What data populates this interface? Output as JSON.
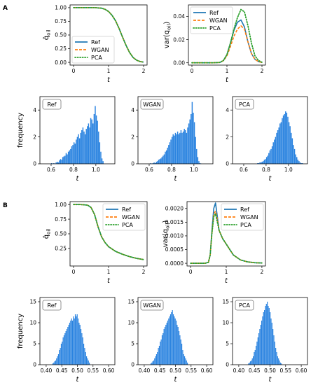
{
  "colors": {
    "ref": "#1f77b4",
    "wgan": "#ff7f0e",
    "pca": "#2ca02c",
    "hist": "#2a83e0"
  },
  "panels": [
    {
      "label": "A"
    },
    {
      "label": "B"
    }
  ],
  "chart_data": [
    {
      "id": "A-mean",
      "type": "line",
      "xlabel": "t",
      "ylabel": "q̂_oil",
      "ylabel_text": "q̂",
      "ylabel_sub": "oil",
      "xlim": [
        -0.1,
        2.1
      ],
      "ylim": [
        -0.05,
        1.05
      ],
      "xticks": [
        0,
        1,
        2
      ],
      "xtick_labels": [
        "0",
        "1",
        "2"
      ],
      "yticks": [
        0,
        0.25,
        0.5,
        0.75,
        1.0
      ],
      "ytick_labels": [
        "0.00",
        "0.25",
        "0.50",
        "0.75",
        "1.00"
      ],
      "legend": {
        "position": "lower-left",
        "entries": [
          "Ref",
          "WGAN",
          "PCA"
        ]
      },
      "series": [
        {
          "name": "Ref",
          "style": "solid",
          "x": [
            0,
            0.2,
            0.4,
            0.6,
            0.8,
            0.9,
            1.0,
            1.1,
            1.2,
            1.3,
            1.4,
            1.5,
            1.6,
            1.7,
            1.8,
            1.9,
            2.0
          ],
          "values": [
            1.0,
            1.0,
            1.0,
            1.0,
            0.99,
            0.97,
            0.93,
            0.86,
            0.76,
            0.62,
            0.46,
            0.31,
            0.18,
            0.09,
            0.04,
            0.015,
            0.005
          ]
        },
        {
          "name": "WGAN",
          "style": "dashed",
          "x": [
            0,
            0.2,
            0.4,
            0.6,
            0.8,
            0.9,
            1.0,
            1.1,
            1.2,
            1.3,
            1.4,
            1.5,
            1.6,
            1.7,
            1.8,
            1.9,
            2.0
          ],
          "values": [
            1.0,
            1.0,
            1.0,
            1.0,
            0.99,
            0.97,
            0.93,
            0.86,
            0.76,
            0.62,
            0.46,
            0.31,
            0.18,
            0.09,
            0.04,
            0.015,
            0.005
          ]
        },
        {
          "name": "PCA",
          "style": "dotted",
          "x": [
            0,
            0.2,
            0.4,
            0.6,
            0.8,
            0.9,
            1.0,
            1.1,
            1.2,
            1.3,
            1.4,
            1.5,
            1.6,
            1.7,
            1.8,
            1.9,
            2.0
          ],
          "values": [
            1.0,
            1.0,
            1.0,
            1.0,
            0.99,
            0.97,
            0.93,
            0.86,
            0.76,
            0.62,
            0.46,
            0.31,
            0.18,
            0.09,
            0.04,
            0.015,
            0.005
          ]
        }
      ]
    },
    {
      "id": "A-var",
      "type": "line",
      "xlabel": "t",
      "ylabel": "var(q_oil)",
      "ylabel_text": "var(q",
      "ylabel_sub": "oil",
      "ylabel_close": ")",
      "xlim": [
        -0.1,
        2.1
      ],
      "ylim": [
        -0.002,
        0.05
      ],
      "xticks": [
        0,
        1,
        2
      ],
      "xtick_labels": [
        "0",
        "1",
        "2"
      ],
      "yticks": [
        0,
        0.02,
        0.04
      ],
      "ytick_labels": [
        "0.00",
        "0.02",
        "0.04"
      ],
      "legend": {
        "position": "upper-left",
        "entries": [
          "Ref",
          "WGAN",
          "PCA"
        ]
      },
      "series": [
        {
          "name": "Ref",
          "style": "solid",
          "x": [
            0,
            0.6,
            0.8,
            0.9,
            1.0,
            1.1,
            1.2,
            1.3,
            1.4,
            1.5,
            1.6,
            1.7,
            1.8,
            1.9,
            2.0
          ],
          "values": [
            0,
            0,
            0.0003,
            0.002,
            0.007,
            0.017,
            0.028,
            0.035,
            0.037,
            0.031,
            0.018,
            0.008,
            0.003,
            0.001,
            0.0003
          ]
        },
        {
          "name": "WGAN",
          "style": "dashed",
          "x": [
            0,
            0.6,
            0.8,
            0.9,
            1.0,
            1.1,
            1.2,
            1.3,
            1.4,
            1.5,
            1.6,
            1.7,
            1.8,
            1.9,
            2.0
          ],
          "values": [
            0,
            0,
            0.0003,
            0.0018,
            0.006,
            0.014,
            0.023,
            0.029,
            0.032,
            0.029,
            0.018,
            0.008,
            0.003,
            0.001,
            0.0003
          ]
        },
        {
          "name": "PCA",
          "style": "dotted",
          "x": [
            0,
            0.6,
            0.8,
            0.9,
            1.0,
            1.1,
            1.2,
            1.3,
            1.4,
            1.5,
            1.6,
            1.7,
            1.8,
            1.9,
            2.0
          ],
          "values": [
            0,
            0,
            0.0003,
            0.002,
            0.007,
            0.017,
            0.029,
            0.039,
            0.046,
            0.044,
            0.032,
            0.017,
            0.006,
            0.002,
            0.0005
          ]
        }
      ]
    },
    {
      "id": "A-hist-ref",
      "type": "bar",
      "label": "Ref",
      "xlabel": "t",
      "ylabel": "frequency",
      "xlim": [
        0.5,
        1.17
      ],
      "ylim": [
        0,
        5.0
      ],
      "xticks": [
        0.6,
        0.8,
        1.0
      ],
      "xtick_labels": [
        "0.6",
        "0.8",
        "1.0"
      ],
      "yticks": [
        0,
        2,
        4
      ],
      "ytick_labels": [
        "0",
        "2",
        "4"
      ],
      "bin_start": 0.6,
      "bin_width": 0.01,
      "values": [
        0.05,
        0,
        0.05,
        0,
        0.1,
        0.15,
        0.1,
        0.25,
        0.35,
        0.3,
        0.5,
        0.55,
        0.6,
        0.8,
        0.7,
        0.9,
        1.0,
        1.1,
        1.3,
        1.4,
        1.6,
        1.5,
        1.8,
        2.0,
        2.2,
        1.9,
        2.3,
        2.5,
        2.7,
        2.4,
        2.2,
        2.6,
        2.8,
        3.0,
        2.7,
        3.4,
        3.3,
        3.0,
        3.7,
        4.3,
        3.6,
        3.2,
        2.4,
        1.6,
        0.9,
        0.4,
        0.2
      ]
    },
    {
      "id": "A-hist-wgan",
      "type": "bar",
      "label": "WGAN",
      "xlabel": "t",
      "xlim": [
        0.5,
        1.17
      ],
      "ylim": [
        0,
        5.0
      ],
      "xticks": [
        0.6,
        0.8,
        1.0
      ],
      "xtick_labels": [
        "0.6",
        "0.8",
        "1.0"
      ],
      "yticks": [
        0,
        2,
        4
      ],
      "ytick_labels": [
        "0",
        "2",
        "4"
      ],
      "bin_start": 0.6,
      "bin_width": 0.01,
      "values": [
        0,
        0.05,
        0,
        0.05,
        0.1,
        0.05,
        0.15,
        0.2,
        0.3,
        0.35,
        0.4,
        0.5,
        0.6,
        0.7,
        0.9,
        1.0,
        1.2,
        1.4,
        1.6,
        1.8,
        2.0,
        2.2,
        2.1,
        2.3,
        2.2,
        2.4,
        2.2,
        2.3,
        2.5,
        2.3,
        2.4,
        2.6,
        2.5,
        2.3,
        2.7,
        3.0,
        3.3,
        3.7,
        4.6,
        3.8,
        3.1,
        2.0,
        1.1,
        0.5,
        0.2,
        0.05,
        0.02
      ]
    },
    {
      "id": "A-hist-pca",
      "type": "bar",
      "label": "PCA",
      "xlabel": "t",
      "xlim": [
        0.5,
        1.17
      ],
      "ylim": [
        0,
        5.0
      ],
      "xticks": [
        0.6,
        0.8,
        1.0
      ],
      "xtick_labels": [
        "0.6",
        "0.8",
        "1.0"
      ],
      "yticks": [
        0,
        2,
        4
      ],
      "ytick_labels": [
        "0",
        "2",
        "4"
      ],
      "bin_start": 0.72,
      "bin_width": 0.01,
      "values": [
        0.05,
        0.05,
        0.1,
        0.1,
        0.15,
        0.2,
        0.3,
        0.35,
        0.5,
        0.6,
        0.8,
        1.0,
        1.1,
        1.3,
        1.6,
        1.8,
        2.0,
        2.3,
        2.5,
        2.7,
        3.0,
        3.1,
        3.4,
        3.6,
        3.7,
        3.9,
        3.8,
        3.5,
        3.1,
        2.8,
        2.3,
        1.9,
        1.4,
        1.1,
        0.7,
        0.5,
        0.3,
        0.2,
        0.1,
        0.05,
        0.05
      ]
    },
    {
      "id": "B-mean",
      "type": "line",
      "xlabel": "t",
      "ylabel": "q̂_oil",
      "ylabel_text": "q̂",
      "ylabel_sub": "oil",
      "xlim": [
        -0.1,
        2.1
      ],
      "ylim": [
        -0.05,
        1.05
      ],
      "xticks": [
        0,
        1,
        2
      ],
      "xtick_labels": [
        "0",
        "1",
        "2"
      ],
      "yticks": [
        0.25,
        0.5,
        0.75,
        1.0
      ],
      "ytick_labels": [
        "0.25",
        "0.50",
        "0.75",
        "1.00"
      ],
      "legend": {
        "position": "upper-right",
        "entries": [
          "Ref",
          "WGAN",
          "PCA"
        ]
      },
      "series": [
        {
          "name": "Ref",
          "style": "solid",
          "x": [
            0,
            0.2,
            0.4,
            0.5,
            0.6,
            0.7,
            0.8,
            0.9,
            1.0,
            1.2,
            1.4,
            1.6,
            1.8,
            2.0
          ],
          "values": [
            1.0,
            1.0,
            0.99,
            0.95,
            0.83,
            0.62,
            0.45,
            0.35,
            0.28,
            0.2,
            0.15,
            0.11,
            0.08,
            0.06
          ]
        },
        {
          "name": "WGAN",
          "style": "dashed",
          "x": [
            0,
            0.2,
            0.4,
            0.5,
            0.6,
            0.7,
            0.8,
            0.9,
            1.0,
            1.2,
            1.4,
            1.6,
            1.8,
            2.0
          ],
          "values": [
            1.0,
            1.0,
            0.99,
            0.95,
            0.83,
            0.62,
            0.45,
            0.35,
            0.28,
            0.2,
            0.15,
            0.11,
            0.08,
            0.06
          ]
        },
        {
          "name": "PCA",
          "style": "dotted",
          "x": [
            0,
            0.2,
            0.4,
            0.5,
            0.6,
            0.7,
            0.8,
            0.9,
            1.0,
            1.2,
            1.4,
            1.6,
            1.8,
            2.0
          ],
          "values": [
            1.0,
            1.0,
            0.99,
            0.95,
            0.83,
            0.62,
            0.45,
            0.35,
            0.28,
            0.2,
            0.15,
            0.11,
            0.08,
            0.06
          ]
        }
      ]
    },
    {
      "id": "B-var",
      "type": "line",
      "xlabel": "t",
      "ylabel": "var(q_oil)",
      "ylabel_text": "var(q",
      "ylabel_sub": "oil",
      "ylabel_close": ")",
      "xlim": [
        -0.1,
        2.1
      ],
      "ylim": [
        -0.0001,
        0.00225
      ],
      "xticks": [
        0,
        1,
        2
      ],
      "xtick_labels": [
        "0",
        "1",
        "2"
      ],
      "yticks": [
        0,
        0.0005,
        0.001,
        0.0015,
        0.002
      ],
      "ytick_labels": [
        "0.0000",
        "0.0005",
        "0.0010",
        "0.0015",
        "0.0020"
      ],
      "legend": {
        "position": "upper-right",
        "entries": [
          "Ref",
          "WGAN",
          "PCA"
        ]
      },
      "series": [
        {
          "name": "Ref",
          "style": "solid",
          "x": [
            0,
            0.4,
            0.5,
            0.55,
            0.6,
            0.65,
            0.7,
            0.75,
            0.8,
            0.9,
            1.0,
            1.1,
            1.2,
            1.4,
            1.6,
            1.8,
            2.0
          ],
          "values": [
            0,
            0,
            3e-05,
            0.0003,
            0.0012,
            0.002,
            0.0022,
            0.0017,
            0.0012,
            0.0009,
            0.0007,
            0.0005,
            0.0003,
            0.00012,
            5e-05,
            2e-05,
            1e-05
          ]
        },
        {
          "name": "WGAN",
          "style": "dashed",
          "x": [
            0,
            0.4,
            0.5,
            0.55,
            0.6,
            0.65,
            0.7,
            0.75,
            0.8,
            0.9,
            1.0,
            1.1,
            1.2,
            1.4,
            1.6,
            1.8,
            2.0
          ],
          "values": [
            0,
            0,
            3e-05,
            0.0003,
            0.0011,
            0.0018,
            0.0019,
            0.0016,
            0.0012,
            0.0009,
            0.0007,
            0.0005,
            0.0003,
            0.00012,
            5e-05,
            2e-05,
            1e-05
          ]
        },
        {
          "name": "PCA",
          "style": "dotted",
          "x": [
            0,
            0.4,
            0.5,
            0.55,
            0.6,
            0.65,
            0.7,
            0.75,
            0.8,
            0.9,
            1.0,
            1.1,
            1.2,
            1.4,
            1.6,
            1.8,
            2.0
          ],
          "values": [
            0,
            0,
            3e-05,
            0.0003,
            0.0011,
            0.0017,
            0.0018,
            0.0015,
            0.0012,
            0.0009,
            0.0007,
            0.0005,
            0.0003,
            0.00012,
            5e-05,
            2e-05,
            1e-05
          ]
        }
      ]
    },
    {
      "id": "B-hist-ref",
      "type": "bar",
      "label": "Ref",
      "xlabel": "t",
      "ylabel": "frequency",
      "xlim": [
        0.38,
        0.62
      ],
      "ylim": [
        0,
        16
      ],
      "xticks": [
        0.4,
        0.45,
        0.5,
        0.55,
        0.6
      ],
      "xtick_labels": [
        "0.40",
        "0.45",
        "0.50",
        "0.55",
        "0.60"
      ],
      "yticks": [
        0,
        5,
        10,
        15
      ],
      "ytick_labels": [
        "0",
        "5",
        "10",
        "15"
      ],
      "bin_start": 0.42,
      "bin_width": 0.003,
      "values": [
        0.3,
        0.5,
        0.8,
        1.0,
        1.5,
        2.0,
        2.5,
        3.5,
        4.0,
        5.0,
        5.5,
        6.5,
        7.0,
        7.5,
        8.0,
        8.5,
        9.0,
        9.5,
        10.0,
        10.5,
        11.0,
        10.5,
        11.5,
        11.0,
        12.0,
        11.5,
        12.0,
        11.0,
        10.0,
        9.5,
        8.5,
        7.5,
        6.5,
        5.0,
        4.0,
        3.0,
        2.0,
        1.5,
        1.0,
        0.5
      ]
    },
    {
      "id": "B-hist-wgan",
      "type": "bar",
      "label": "WGAN",
      "xlabel": "t",
      "xlim": [
        0.38,
        0.62
      ],
      "ylim": [
        0,
        16
      ],
      "xticks": [
        0.4,
        0.45,
        0.5,
        0.55,
        0.6
      ],
      "xtick_labels": [
        "0.40",
        "0.45",
        "0.50",
        "0.55",
        "0.60"
      ],
      "yticks": [
        0,
        5,
        10,
        15
      ],
      "ytick_labels": [
        "0",
        "5",
        "10",
        "15"
      ],
      "bin_start": 0.42,
      "bin_width": 0.003,
      "values": [
        0.3,
        0.5,
        0.8,
        1.0,
        1.5,
        2.0,
        2.5,
        3.0,
        4.0,
        4.5,
        5.5,
        6.0,
        7.0,
        7.5,
        8.5,
        9.0,
        9.5,
        10.0,
        10.5,
        11.0,
        11.5,
        12.0,
        12.5,
        13.0,
        12.0,
        11.5,
        11.0,
        10.5,
        9.5,
        9.0,
        8.0,
        7.0,
        6.0,
        5.0,
        3.5,
        2.5,
        2.0,
        1.5,
        1.0,
        0.5
      ]
    },
    {
      "id": "B-hist-pca",
      "type": "bar",
      "label": "PCA",
      "xlabel": "t",
      "xlim": [
        0.38,
        0.62
      ],
      "ylim": [
        0,
        16
      ],
      "xticks": [
        0.4,
        0.45,
        0.5,
        0.55,
        0.6
      ],
      "xtick_labels": [
        "0.40",
        "0.45",
        "0.50",
        "0.55",
        "0.60"
      ],
      "yticks": [
        0,
        5,
        10,
        15
      ],
      "ytick_labels": [
        "0",
        "5",
        "10",
        "15"
      ],
      "bin_start": 0.43,
      "bin_width": 0.003,
      "values": [
        0.3,
        0.5,
        0.8,
        1.0,
        1.5,
        2.0,
        3.0,
        3.5,
        4.5,
        5.5,
        6.5,
        7.5,
        8.5,
        9.5,
        10.5,
        11.5,
        12.5,
        13.0,
        14.0,
        14.5,
        15.0,
        14.0,
        13.5,
        12.5,
        11.0,
        10.0,
        8.5,
        7.0,
        5.5,
        4.0,
        3.0,
        2.0,
        1.5,
        1.0,
        0.5,
        0.3
      ]
    }
  ]
}
